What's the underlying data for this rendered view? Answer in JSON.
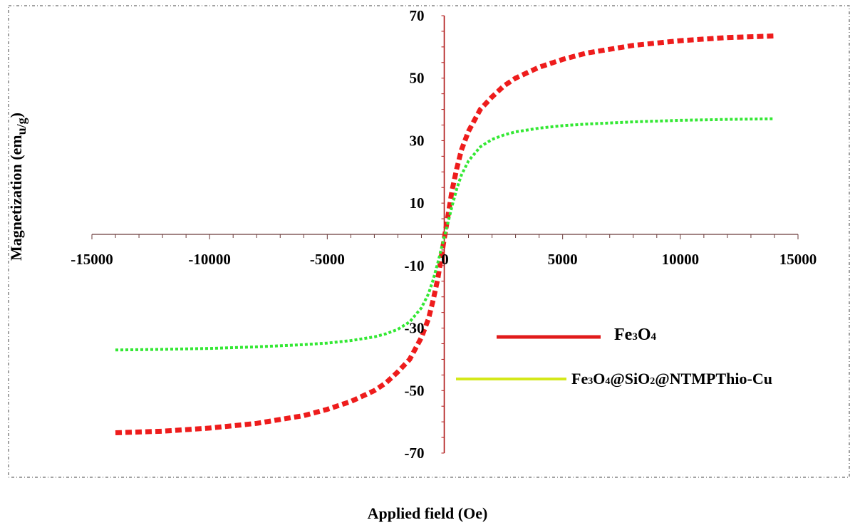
{
  "chart_data": {
    "type": "line",
    "xlabel": "Applied field (Oe)",
    "ylabel": "Magnetization (emu/g)",
    "ylabel_parts": {
      "main": "Magnetization (em",
      "sub": "u/g",
      "close": ")"
    },
    "xlim": [
      -15000,
      15000
    ],
    "ylim": [
      -70,
      70
    ],
    "x_ticks": [
      "-15000",
      "-10000",
      "-5000",
      "0",
      "5000",
      "10000",
      "15000"
    ],
    "y_ticks": [
      "70",
      "50",
      "30",
      "10",
      "-10",
      "-30",
      "-50",
      "-70"
    ],
    "series": [
      {
        "name": "Fe3O4",
        "legend_parts": [
          [
            "Fe",
            false
          ],
          [
            "3",
            true
          ],
          [
            "O",
            false
          ],
          [
            "4",
            true
          ]
        ],
        "color": "#ee1c1c",
        "legend_color": "#e11b1b",
        "x": [
          -14000,
          -12000,
          -10000,
          -8000,
          -6000,
          -5000,
          -4000,
          -3000,
          -2500,
          -2000,
          -1500,
          -1000,
          -700,
          -500,
          -300,
          -150,
          0,
          150,
          300,
          500,
          700,
          1000,
          1500,
          2000,
          2500,
          3000,
          4000,
          5000,
          6000,
          8000,
          10000,
          12000,
          14000
        ],
        "y": [
          -63.5,
          -63,
          -62,
          -60.5,
          -58,
          -56,
          -53.5,
          -50,
          -47.5,
          -44,
          -40,
          -33,
          -27,
          -21,
          -14,
          -7,
          0,
          7,
          14,
          21,
          27,
          33,
          40,
          44,
          47.5,
          50,
          53.5,
          56,
          58,
          60.5,
          62,
          63,
          63.5
        ]
      },
      {
        "name": "Fe3O4@SiO2@NTMPThio-Cu",
        "legend_parts": [
          [
            "Fe",
            false
          ],
          [
            "3",
            true
          ],
          [
            "O",
            false
          ],
          [
            "4",
            true
          ],
          [
            "@SiO",
            false
          ],
          [
            "2",
            true
          ],
          [
            "@NTMPThio-Cu",
            false
          ]
        ],
        "color": "#33e833",
        "legend_color": "#d4e81a",
        "x": [
          -14000,
          -12000,
          -10000,
          -8000,
          -6000,
          -5000,
          -4000,
          -3000,
          -2500,
          -2000,
          -1500,
          -1000,
          -700,
          -500,
          -300,
          -150,
          0,
          150,
          300,
          500,
          700,
          1000,
          1500,
          2000,
          2500,
          3000,
          4000,
          5000,
          6000,
          8000,
          10000,
          12000,
          14000
        ],
        "y": [
          -37,
          -36.8,
          -36.5,
          -36,
          -35.3,
          -34.8,
          -34,
          -32.8,
          -31.8,
          -30.4,
          -28,
          -23.5,
          -19,
          -14.5,
          -9,
          -4.5,
          0,
          4.5,
          9,
          14.5,
          19,
          23.5,
          28,
          30.4,
          31.8,
          32.8,
          34,
          34.8,
          35.3,
          36,
          36.5,
          36.8,
          37
        ]
      }
    ],
    "legend_placement": "lower-right",
    "grid": false
  }
}
